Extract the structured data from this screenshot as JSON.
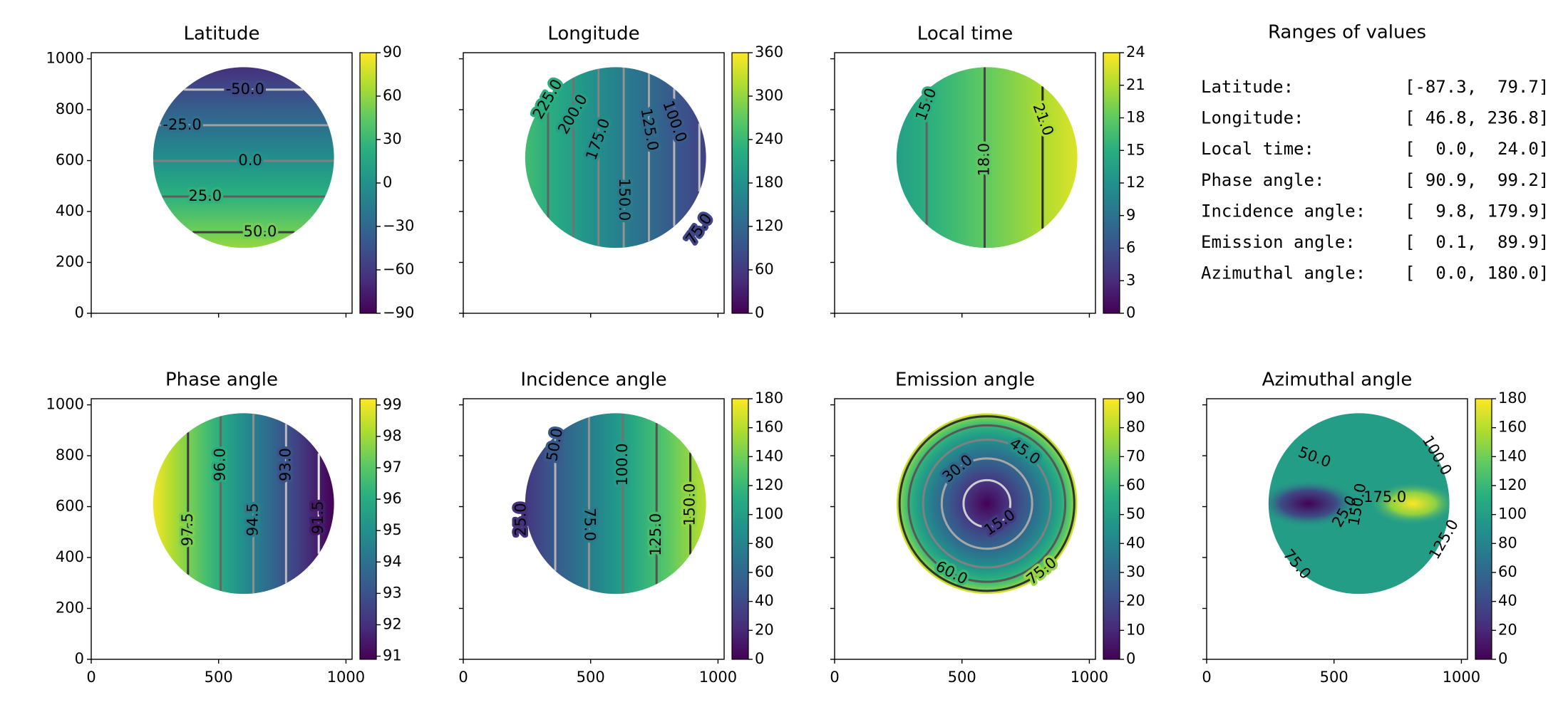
{
  "chart_data": [
    {
      "type": "heatmap",
      "title": "Latitude",
      "xlim": [
        0,
        1024
      ],
      "ylim": [
        0,
        1024
      ],
      "xticks": [
        0,
        500,
        1000
      ],
      "yticks": [
        0,
        200,
        400,
        600,
        800,
        1000
      ],
      "show_xticklabels": false,
      "show_yticklabels": true,
      "colormap": "viridis",
      "clim": [
        -90,
        90
      ],
      "cticks": [
        {
          "value": -90,
          "label": "−90"
        },
        {
          "value": -60,
          "label": "−60"
        },
        {
          "value": -30,
          "label": "−30"
        },
        0,
        30,
        60,
        90
      ],
      "contours": [
        {
          "value": -50,
          "label": "-50.0"
        },
        {
          "value": -25,
          "label": "-25.0"
        },
        {
          "value": 0,
          "label": "0.0"
        },
        {
          "value": 25,
          "label": "25.0"
        },
        {
          "value": 50,
          "label": "50.0"
        }
      ]
    },
    {
      "type": "heatmap",
      "title": "Longitude",
      "xlim": [
        0,
        1024
      ],
      "ylim": [
        0,
        1024
      ],
      "xticks": [
        0,
        500,
        1000
      ],
      "yticks": [
        0,
        200,
        400,
        600,
        800,
        1000
      ],
      "show_xticklabels": false,
      "show_yticklabels": false,
      "colormap": "viridis",
      "clim": [
        0,
        360
      ],
      "cticks": [
        0,
        60,
        120,
        180,
        240,
        300,
        360
      ],
      "contours": [
        {
          "value": 225,
          "label": "225.0"
        },
        {
          "value": 200,
          "label": "200.0"
        },
        {
          "value": 175,
          "label": "175.0"
        },
        {
          "value": 150,
          "label": "150.0"
        },
        {
          "value": 125,
          "label": "125.0"
        },
        {
          "value": 100,
          "label": "100.0"
        },
        {
          "value": 75,
          "label": "75.0"
        }
      ]
    },
    {
      "type": "heatmap",
      "title": "Local time",
      "xlim": [
        0,
        1024
      ],
      "ylim": [
        0,
        1024
      ],
      "xticks": [
        0,
        500,
        1000
      ],
      "yticks": [
        0,
        200,
        400,
        600,
        800,
        1000
      ],
      "show_xticklabels": false,
      "show_yticklabels": false,
      "colormap": "viridis",
      "clim": [
        0,
        24
      ],
      "cticks": [
        0,
        3,
        6,
        9,
        12,
        15,
        18,
        21,
        24
      ],
      "contours": [
        {
          "value": 15,
          "label": "15.0"
        },
        {
          "value": 18,
          "label": "18.0"
        },
        {
          "value": 21,
          "label": "21.0"
        }
      ]
    },
    {
      "type": "heatmap",
      "title": "Phase angle",
      "xlim": [
        0,
        1024
      ],
      "ylim": [
        0,
        1024
      ],
      "xticks": [
        0,
        500,
        1000
      ],
      "yticks": [
        0,
        200,
        400,
        600,
        800,
        1000
      ],
      "show_xticklabels": true,
      "show_yticklabels": true,
      "colormap": "viridis",
      "clim": [
        90.9,
        99.2
      ],
      "cticks": [
        91,
        92,
        93,
        94,
        95,
        96,
        97,
        98,
        99
      ],
      "contours": [
        91.5,
        {
          "value": 93,
          "label": "93.0"
        },
        94.5,
        {
          "value": 96,
          "label": "96.0"
        },
        97.5
      ]
    },
    {
      "type": "heatmap",
      "title": "Incidence angle",
      "xlim": [
        0,
        1024
      ],
      "ylim": [
        0,
        1024
      ],
      "xticks": [
        0,
        500,
        1000
      ],
      "yticks": [
        0,
        200,
        400,
        600,
        800,
        1000
      ],
      "show_xticklabels": true,
      "show_yticklabels": false,
      "colormap": "viridis",
      "clim": [
        0,
        180
      ],
      "cticks": [
        0,
        20,
        40,
        60,
        80,
        100,
        120,
        140,
        160,
        180
      ],
      "contours": [
        {
          "value": 25,
          "label": "25.0"
        },
        {
          "value": 50,
          "label": "50.0"
        },
        {
          "value": 75,
          "label": "75.0"
        },
        {
          "value": 100,
          "label": "100.0"
        },
        {
          "value": 125,
          "label": "125.0"
        },
        {
          "value": 150,
          "label": "150.0"
        }
      ]
    },
    {
      "type": "heatmap",
      "title": "Emission angle",
      "xlim": [
        0,
        1024
      ],
      "ylim": [
        0,
        1024
      ],
      "xticks": [
        0,
        500,
        1000
      ],
      "yticks": [
        0,
        200,
        400,
        600,
        800,
        1000
      ],
      "show_xticklabels": true,
      "show_yticklabels": false,
      "colormap": "viridis",
      "clim": [
        0,
        90
      ],
      "cticks": [
        0,
        10,
        20,
        30,
        40,
        50,
        60,
        70,
        80,
        90
      ],
      "contours": [
        {
          "value": 15,
          "label": "15.0"
        },
        {
          "value": 30,
          "label": "30.0"
        },
        {
          "value": 45,
          "label": "45.0"
        },
        {
          "value": 60,
          "label": "60.0"
        },
        {
          "value": 75,
          "label": "75.0"
        }
      ]
    },
    {
      "type": "heatmap",
      "title": "Azimuthal angle",
      "xlim": [
        0,
        1024
      ],
      "ylim": [
        0,
        1024
      ],
      "xticks": [
        0,
        500,
        1000
      ],
      "yticks": [
        0,
        200,
        400,
        600,
        800,
        1000
      ],
      "show_xticklabels": true,
      "show_yticklabels": false,
      "colormap": "viridis",
      "clim": [
        0,
        180
      ],
      "cticks": [
        0,
        20,
        40,
        60,
        80,
        100,
        120,
        140,
        160,
        180
      ],
      "contours": [
        {
          "value": 25,
          "label": "25.0"
        },
        {
          "value": 50,
          "label": "50.0"
        },
        {
          "value": 75,
          "label": "75.0"
        },
        {
          "value": 100,
          "label": "100.0"
        },
        {
          "value": 125,
          "label": "125.0"
        },
        {
          "value": 150,
          "label": "150.0"
        },
        {
          "value": 175,
          "label": "175.0"
        }
      ]
    }
  ],
  "ranges": {
    "title": "Ranges of values",
    "rows": [
      {
        "name": "Latitude:",
        "min": -87.3,
        "max": 79.7
      },
      {
        "name": "Longitude:",
        "min": 46.8,
        "max": 236.8
      },
      {
        "name": "Local time:",
        "min": {
          "value": 0,
          "label": "0.0"
        },
        "max": {
          "value": 24,
          "label": "24.0"
        }
      },
      {
        "name": "Phase angle:",
        "min": 90.9,
        "max": 99.2
      },
      {
        "name": "Incidence angle:",
        "min": 9.8,
        "max": 179.9
      },
      {
        "name": "Emission angle:",
        "min": 0.1,
        "max": 89.9
      },
      {
        "name": "Azimuthal angle:",
        "min": {
          "value": 0,
          "label": "0.0"
        },
        "max": {
          "value": 180,
          "label": "180.0"
        }
      }
    ]
  }
}
